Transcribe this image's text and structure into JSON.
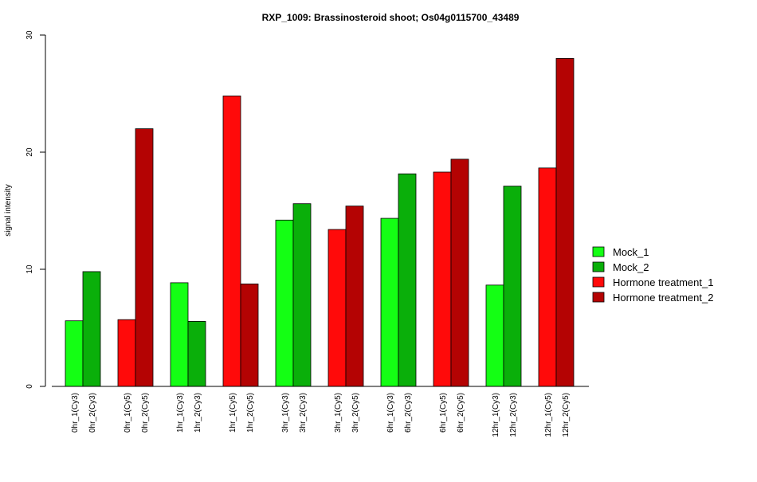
{
  "chart_data": {
    "type": "bar",
    "title": "RXP_1009: Brassinosteroid shoot; Os04g0115700_43489",
    "xlabel": "",
    "ylabel": "signal intensity",
    "ylim": [
      0,
      30
    ],
    "yticks": [
      0,
      10,
      20,
      30
    ],
    "grid": false,
    "legend_position": "right",
    "series_colors": {
      "Mock_1": "#14ff14",
      "Mock_2": "#0aaf0a",
      "Hormone treatment_1": "#ff0a0a",
      "Hormone treatment_2": "#b40303"
    },
    "legend": [
      "Mock_1",
      "Mock_2",
      "Hormone treatment_1",
      "Hormone treatment_2"
    ],
    "bars": [
      {
        "label": "0hr_1(Cy3)",
        "value": 5.6,
        "series": "Mock_1"
      },
      {
        "label": "0hr_2(Cy3)",
        "value": 9.8,
        "series": "Mock_2"
      },
      {
        "label": "0hr_1(Cy5)",
        "value": 5.7,
        "series": "Hormone treatment_1"
      },
      {
        "label": "0hr_2(Cy5)",
        "value": 22.0,
        "series": "Hormone treatment_2"
      },
      {
        "label": "1hr_1(Cy3)",
        "value": 8.85,
        "series": "Mock_1"
      },
      {
        "label": "1hr_2(Cy3)",
        "value": 5.55,
        "series": "Mock_2"
      },
      {
        "label": "1hr_1(Cy5)",
        "value": 24.8,
        "series": "Hormone treatment_1"
      },
      {
        "label": "1hr_2(Cy5)",
        "value": 8.75,
        "series": "Hormone treatment_2"
      },
      {
        "label": "3hr_1(Cy3)",
        "value": 14.2,
        "series": "Mock_1"
      },
      {
        "label": "3hr_2(Cy3)",
        "value": 15.6,
        "series": "Mock_2"
      },
      {
        "label": "3hr_1(Cy5)",
        "value": 13.4,
        "series": "Hormone treatment_1"
      },
      {
        "label": "3hr_2(Cy5)",
        "value": 15.4,
        "series": "Hormone treatment_2"
      },
      {
        "label": "6hr_1(Cy3)",
        "value": 14.35,
        "series": "Mock_1"
      },
      {
        "label": "6hr_2(Cy3)",
        "value": 18.15,
        "series": "Mock_2"
      },
      {
        "label": "6hr_1(Cy5)",
        "value": 18.3,
        "series": "Hormone treatment_1"
      },
      {
        "label": "6hr_2(Cy5)",
        "value": 19.4,
        "series": "Hormone treatment_2"
      },
      {
        "label": "12hr_1(Cy3)",
        "value": 8.65,
        "series": "Mock_1"
      },
      {
        "label": "12hr_2(Cy3)",
        "value": 17.1,
        "series": "Mock_2"
      },
      {
        "label": "12hr_1(Cy5)",
        "value": 18.65,
        "series": "Hormone treatment_1"
      },
      {
        "label": "12hr_2(Cy5)",
        "value": 28.0,
        "series": "Hormone treatment_2"
      }
    ]
  }
}
